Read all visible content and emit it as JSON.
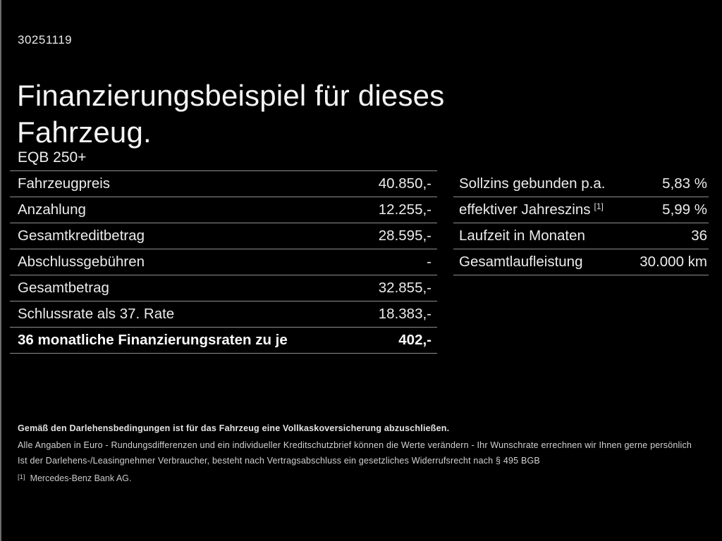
{
  "doc_number": "30251119",
  "title": "Finanzierungsbeispiel für dieses Fahrzeug.",
  "model": "EQB 250+",
  "finance_table": {
    "rows": [
      {
        "label": "Fahrzeugpreis",
        "value": "40.850,-"
      },
      {
        "label": "Anzahlung",
        "value": "12.255,-"
      },
      {
        "label": "Gesamtkreditbetrag",
        "value": "28.595,-"
      },
      {
        "label": "Abschlussgebühren",
        "value": "-"
      },
      {
        "label": "Gesamtbetrag",
        "value": "32.855,-"
      },
      {
        "label": "Schlussrate als 37. Rate",
        "value": "18.383,-"
      },
      {
        "label": "36 monatliche Finanzierungsraten zu je",
        "value": "402,-"
      }
    ]
  },
  "conditions_table": {
    "rows": [
      {
        "label": "Sollzins gebunden p.a.",
        "value": "5,83 %"
      },
      {
        "label": "effektiver Jahreszins",
        "sup": "[1]",
        "value": "5,99 %"
      },
      {
        "label": "Laufzeit in Monaten",
        "value": "36"
      },
      {
        "label": "Gesamtlaufleistung",
        "value": "30.000 km"
      }
    ]
  },
  "footer": {
    "insurance_note": "Gemäß den Darlehensbedingungen ist für das Fahrzeug eine Vollkaskoversicherung abzuschließen.",
    "disclaimer_1": "Alle Angaben in Euro - Rundungsdifferenzen und ein individueller Kreditschutzbrief können die Werte verändern - Ihr Wunschrate errechnen wir Ihnen gerne persönlich",
    "disclaimer_2": "Ist der Darlehens-/Leasingnehmer Verbraucher, besteht nach Vertragsabschluss ein gesetzliches Widerrufsrecht nach § 495 BGB",
    "footnote_marker": "[1]",
    "footnote_text": "Mercedes-Benz Bank AG."
  },
  "colors": {
    "background": "#000000",
    "text_primary": "#f0f0f0",
    "text_secondary": "#d2d2d2",
    "divider": "#8f8f8f"
  }
}
